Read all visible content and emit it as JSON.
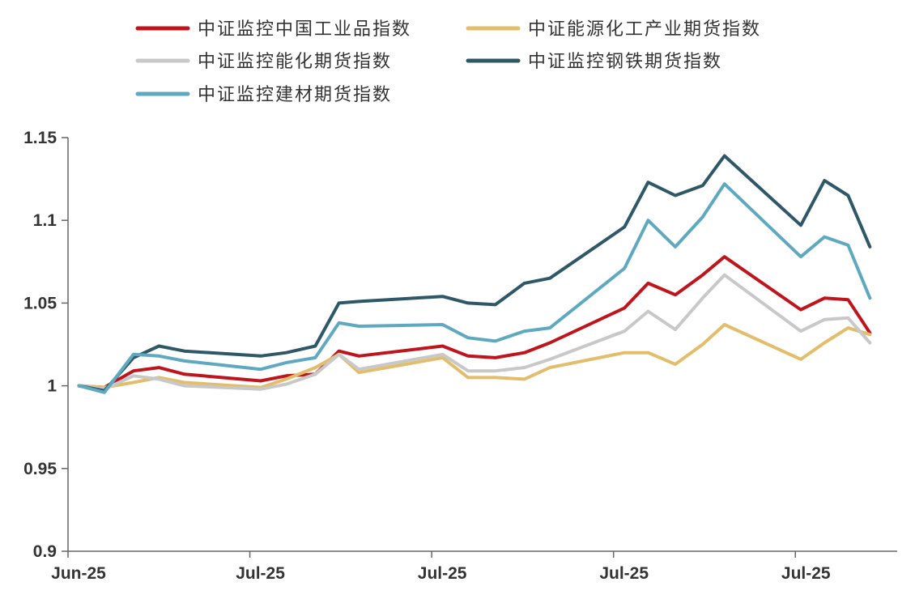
{
  "chart_data": {
    "type": "line",
    "title": "",
    "xlabel": "",
    "ylabel": "",
    "ylim": [
      0.9,
      1.15
    ],
    "yticks": [
      "0.9",
      "0.95",
      "1",
      "1.05",
      "1.1",
      "1.15"
    ],
    "ytick_values": [
      0.9,
      0.95,
      1.0,
      1.05,
      1.1,
      1.15
    ],
    "xticks": [
      "Jun-25",
      "Jul-25",
      "Jul-25",
      "Jul-25",
      "Jul-25"
    ],
    "xtick_positions": [
      0,
      10,
      20,
      30,
      40
    ],
    "grid": false,
    "legend_position": "top",
    "x": [
      0.6,
      2.0,
      3.6,
      5.0,
      6.4,
      10.6,
      12.0,
      13.6,
      14.9,
      16.0,
      20.6,
      22.0,
      23.5,
      25.1,
      26.5,
      30.6,
      31.9,
      33.4,
      34.9,
      36.1,
      40.3,
      41.6,
      42.9,
      44.1
    ],
    "series": [
      {
        "name": "中证监控中国工业品指数",
        "color": "#c0141c",
        "values": [
          1.0,
          0.999,
          1.009,
          1.011,
          1.007,
          1.003,
          1.006,
          1.007,
          1.021,
          1.018,
          1.024,
          1.018,
          1.017,
          1.02,
          1.026,
          1.047,
          1.062,
          1.055,
          1.067,
          1.078,
          1.046,
          1.053,
          1.052,
          1.032
        ]
      },
      {
        "name": "中证能源化工产业期货指数",
        "color": "#e2bd6a",
        "values": [
          1.0,
          0.999,
          1.002,
          1.005,
          1.002,
          0.999,
          1.004,
          1.011,
          1.019,
          1.008,
          1.017,
          1.005,
          1.005,
          1.004,
          1.011,
          1.02,
          1.02,
          1.013,
          1.025,
          1.037,
          1.016,
          1.026,
          1.035,
          1.031
        ]
      },
      {
        "name": "中证监控能化期货指数",
        "color": "#c8c8c8",
        "values": [
          1.0,
          0.998,
          1.006,
          1.004,
          1.0,
          0.998,
          1.001,
          1.007,
          1.019,
          1.01,
          1.019,
          1.009,
          1.009,
          1.011,
          1.016,
          1.033,
          1.045,
          1.034,
          1.053,
          1.067,
          1.033,
          1.04,
          1.041,
          1.026
        ]
      },
      {
        "name": "中证监控钢铁期货指数",
        "color": "#2e5768",
        "values": [
          1.0,
          0.997,
          1.017,
          1.024,
          1.021,
          1.018,
          1.02,
          1.024,
          1.05,
          1.051,
          1.054,
          1.05,
          1.049,
          1.062,
          1.065,
          1.096,
          1.123,
          1.115,
          1.121,
          1.139,
          1.097,
          1.124,
          1.115,
          1.084
        ]
      },
      {
        "name": "中证监控建材期货指数",
        "color": "#5fa9c0",
        "values": [
          1.0,
          0.996,
          1.019,
          1.018,
          1.015,
          1.01,
          1.014,
          1.017,
          1.038,
          1.036,
          1.037,
          1.029,
          1.027,
          1.033,
          1.035,
          1.071,
          1.1,
          1.084,
          1.102,
          1.122,
          1.078,
          1.09,
          1.085,
          1.053
        ]
      }
    ]
  }
}
